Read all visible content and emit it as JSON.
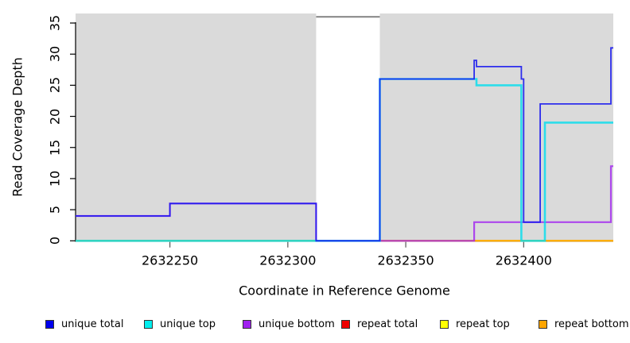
{
  "chart_data": {
    "type": "line",
    "subtype": "step-coverage",
    "title": "",
    "xlabel": "Coordinate in Reference Genome",
    "ylabel": "Read Coverage Depth",
    "xlim": [
      2632210,
      2632438
    ],
    "ylim": [
      0,
      36
    ],
    "x_ticks": [
      2632250,
      2632300,
      2632350,
      2632400
    ],
    "y_ticks": [
      0,
      5,
      10,
      15,
      20,
      25,
      30,
      35
    ],
    "grid": false,
    "plot_bg": "#DADADA",
    "axis_color": "#000000",
    "masked_region": {
      "x_start": 2632312,
      "x_end": 2632339,
      "fill": "#FFFFFF",
      "cap_value": 36,
      "cap_color": "#8A8A8A"
    },
    "series": [
      {
        "name": "repeat total",
        "color": "#EE0000",
        "width": 2.0,
        "opacity": 0.8,
        "points": [
          [
            2632210,
            0
          ],
          [
            2632438,
            0
          ]
        ]
      },
      {
        "name": "repeat top",
        "color": "#FFFF00",
        "width": 2.0,
        "opacity": 0.8,
        "points": [
          [
            2632210,
            0
          ],
          [
            2632438,
            0
          ]
        ]
      },
      {
        "name": "repeat bottom",
        "color": "#FFA500",
        "width": 2.0,
        "opacity": 0.8,
        "points": [
          [
            2632210,
            0
          ],
          [
            2632438,
            0
          ]
        ]
      },
      {
        "name": "unique bottom",
        "color": "#A020F0",
        "width": 2.2,
        "opacity": 0.8,
        "points": [
          [
            2632210,
            4
          ],
          [
            2632250,
            4
          ],
          [
            2632250,
            6
          ],
          [
            2632312,
            6
          ],
          [
            2632312,
            0
          ],
          [
            2632379,
            0
          ],
          [
            2632379,
            3
          ],
          [
            2632437,
            3
          ],
          [
            2632437,
            12
          ],
          [
            2632438,
            12
          ]
        ]
      },
      {
        "name": "unique top",
        "color": "#00DDEE",
        "width": 2.6,
        "opacity": 0.8,
        "points": [
          [
            2632210,
            0
          ],
          [
            2632339,
            0
          ],
          [
            2632339,
            26
          ],
          [
            2632380,
            26
          ],
          [
            2632380,
            25
          ],
          [
            2632399,
            25
          ],
          [
            2632399,
            0
          ],
          [
            2632409,
            0
          ],
          [
            2632409,
            19
          ],
          [
            2632438,
            19
          ]
        ]
      },
      {
        "name": "unique total",
        "color": "#1A1AEE",
        "width": 1.8,
        "opacity": 0.9,
        "points": [
          [
            2632210,
            4
          ],
          [
            2632250,
            4
          ],
          [
            2632250,
            6
          ],
          [
            2632312,
            6
          ],
          [
            2632312,
            0
          ],
          [
            2632339,
            0
          ],
          [
            2632339,
            26
          ],
          [
            2632379,
            26
          ],
          [
            2632379,
            29
          ],
          [
            2632380,
            29
          ],
          [
            2632380,
            28
          ],
          [
            2632399,
            28
          ],
          [
            2632399,
            26
          ],
          [
            2632400,
            26
          ],
          [
            2632400,
            3
          ],
          [
            2632407,
            3
          ],
          [
            2632407,
            22
          ],
          [
            2632437,
            22
          ],
          [
            2632437,
            31
          ],
          [
            2632438,
            31
          ]
        ]
      }
    ]
  },
  "legend": {
    "items": [
      {
        "label": "unique total",
        "color": "#0000EE"
      },
      {
        "label": "unique top",
        "color": "#00EEEE"
      },
      {
        "label": "unique bottom",
        "color": "#A020F0"
      },
      {
        "label": "repeat total",
        "color": "#EE0000"
      },
      {
        "label": "repeat top",
        "color": "#FFFF00"
      },
      {
        "label": "repeat bottom",
        "color": "#FFA500"
      }
    ]
  }
}
